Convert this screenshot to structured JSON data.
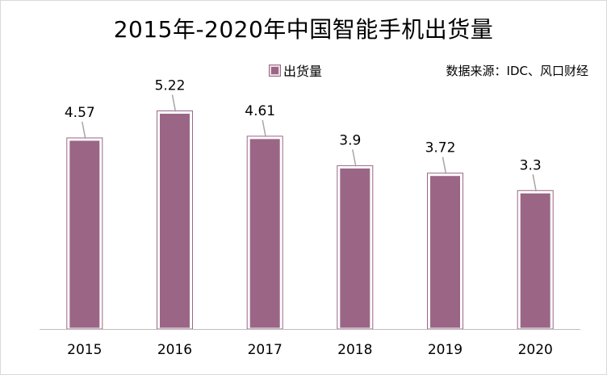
{
  "chart_data": {
    "type": "bar",
    "title": "2015年-2020年中国智能手机出货量",
    "source": "数据来源：IDC、风口财经",
    "categories": [
      "2015",
      "2016",
      "2017",
      "2018",
      "2019",
      "2020"
    ],
    "series": [
      {
        "name": "出货量",
        "values": [
          4.57,
          5.22,
          4.61,
          3.9,
          3.72,
          3.3
        ],
        "labels": [
          "4.57",
          "5.22",
          "4.61",
          "3.9",
          "3.72",
          "3.3"
        ]
      }
    ],
    "ylim": [
      0,
      5.6
    ],
    "grid": false,
    "legend_position": "top-center",
    "colors": {
      "bar": "#9b6685",
      "bar_border": "#ffffff",
      "leader": "#a6a6a6",
      "axis": "#bfbfbf"
    }
  }
}
